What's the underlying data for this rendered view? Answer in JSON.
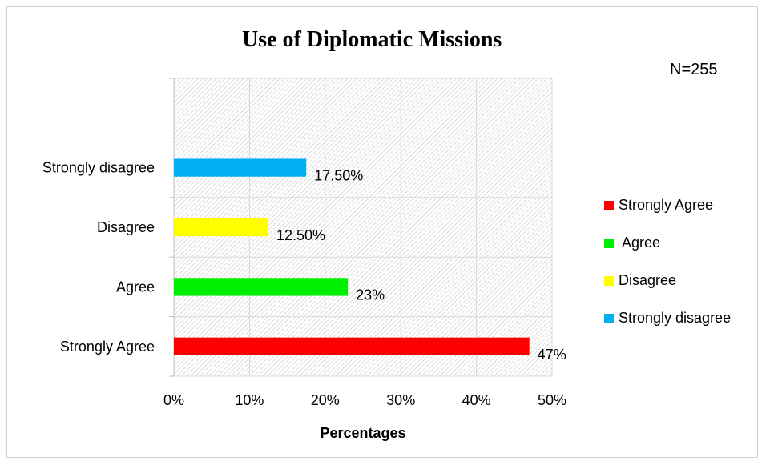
{
  "note": "N=255",
  "chart_data": {
    "type": "bar",
    "orientation": "horizontal",
    "title": "Use of Diplomatic Missions",
    "xlabel": "Percentages",
    "ylabel": "",
    "xlim": [
      0,
      50
    ],
    "x_ticks": [
      "0%",
      "10%",
      "20%",
      "30%",
      "40%",
      "50%"
    ],
    "grid": true,
    "background_pattern": "diagonal hatch",
    "legend_position": "right",
    "categories": [
      "Strongly Agree",
      "Agree",
      "Disagree",
      "Strongly disagree"
    ],
    "values": [
      47,
      23,
      12.5,
      17.5
    ],
    "value_labels": [
      "47%",
      "23%",
      "12.50%",
      "17.50%"
    ],
    "colors": [
      "#ff0000",
      "#00ee00",
      "#ffff00",
      "#00b0f0"
    ],
    "legend": [
      {
        "label": "Strongly Agree",
        "color": "#ff0000"
      },
      {
        "label": " Agree",
        "color": "#00ee00"
      },
      {
        "label": "Disagree",
        "color": "#ffff00"
      },
      {
        "label": "Strongly disagree",
        "color": "#00b0f0"
      }
    ]
  }
}
